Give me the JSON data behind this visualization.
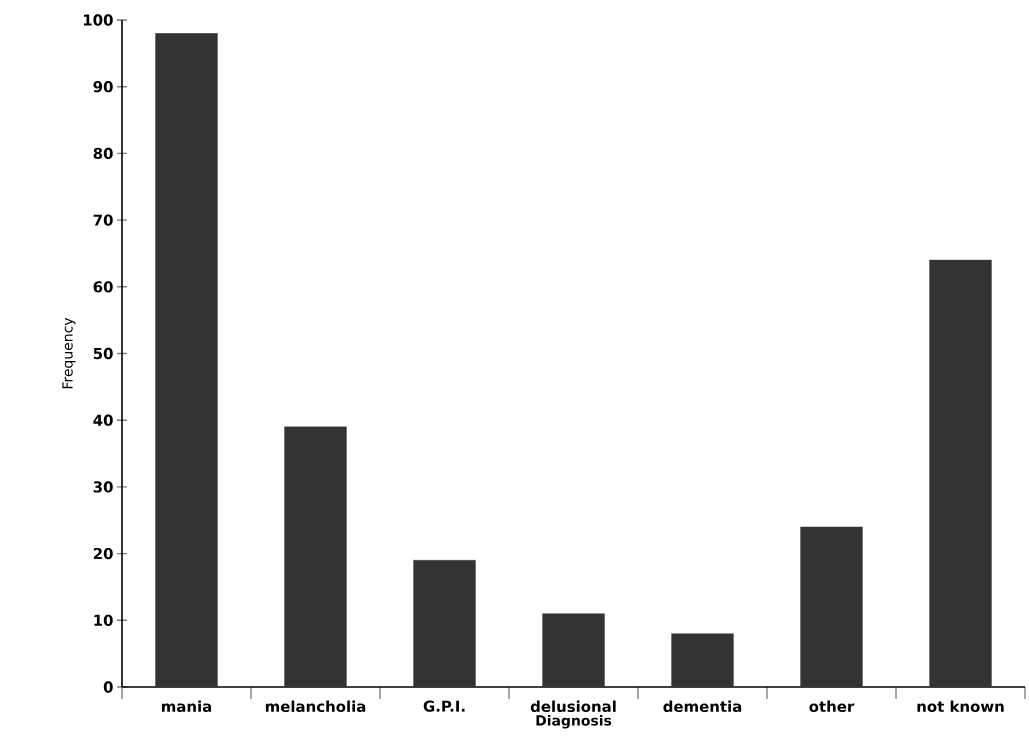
{
  "chart_data": {
    "type": "bar",
    "xlabel": "Diagnosis",
    "ylabel": "Frequency",
    "categories": [
      "mania",
      "melancholia",
      "G.P.I.",
      "delusional",
      "dementia",
      "other",
      "not known"
    ],
    "values": [
      98,
      39,
      19,
      11,
      8,
      24,
      64
    ],
    "color": "#333333",
    "ylim": [
      0,
      100
    ],
    "yticks": [
      0,
      10,
      20,
      30,
      40,
      50,
      60,
      70,
      80,
      90,
      100
    ],
    "grid": false
  }
}
